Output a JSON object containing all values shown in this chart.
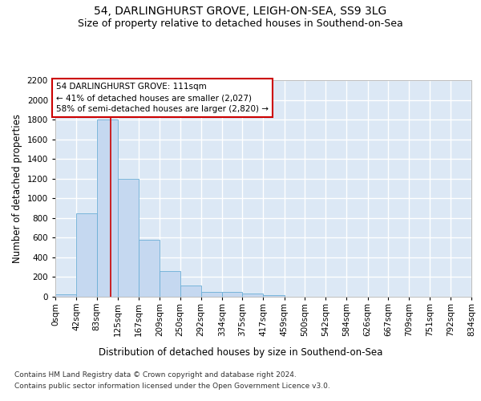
{
  "title_line1": "54, DARLINGHURST GROVE, LEIGH-ON-SEA, SS9 3LG",
  "title_line2": "Size of property relative to detached houses in Southend-on-Sea",
  "xlabel": "Distribution of detached houses by size in Southend-on-Sea",
  "ylabel": "Number of detached properties",
  "footnote_line1": "Contains HM Land Registry data © Crown copyright and database right 2024.",
  "footnote_line2": "Contains public sector information licensed under the Open Government Licence v3.0.",
  "bin_edges": [
    0,
    42,
    83,
    125,
    167,
    209,
    250,
    292,
    334,
    375,
    417,
    459,
    500,
    542,
    584,
    626,
    667,
    709,
    751,
    792,
    834
  ],
  "bar_heights": [
    25,
    850,
    1800,
    1200,
    580,
    260,
    115,
    50,
    45,
    32,
    20,
    0,
    0,
    0,
    0,
    0,
    0,
    0,
    0,
    0
  ],
  "bar_color": "#c5d8f0",
  "bar_edge_color": "#6baed6",
  "property_size": 111,
  "vline_color": "#cc0000",
  "annotation_line1": "54 DARLINGHURST GROVE: 111sqm",
  "annotation_line2": "← 41% of detached houses are smaller (2,027)",
  "annotation_line3": "58% of semi-detached houses are larger (2,820) →",
  "annotation_box_color": "#ffffff",
  "annotation_box_edge": "#cc0000",
  "ylim": [
    0,
    2200
  ],
  "yticks": [
    0,
    200,
    400,
    600,
    800,
    1000,
    1200,
    1400,
    1600,
    1800,
    2000,
    2200
  ],
  "tick_labels": [
    "0sqm",
    "42sqm",
    "83sqm",
    "125sqm",
    "167sqm",
    "209sqm",
    "250sqm",
    "292sqm",
    "334sqm",
    "375sqm",
    "417sqm",
    "459sqm",
    "500sqm",
    "542sqm",
    "584sqm",
    "626sqm",
    "667sqm",
    "709sqm",
    "751sqm",
    "792sqm",
    "834sqm"
  ],
  "background_color": "#dce8f5",
  "grid_color": "#ffffff",
  "fig_bg": "#ffffff",
  "title_fontsize": 10,
  "subtitle_fontsize": 9,
  "axis_label_fontsize": 8.5,
  "tick_fontsize": 7.5,
  "annot_fontsize": 7.5,
  "footnote_fontsize": 6.5
}
